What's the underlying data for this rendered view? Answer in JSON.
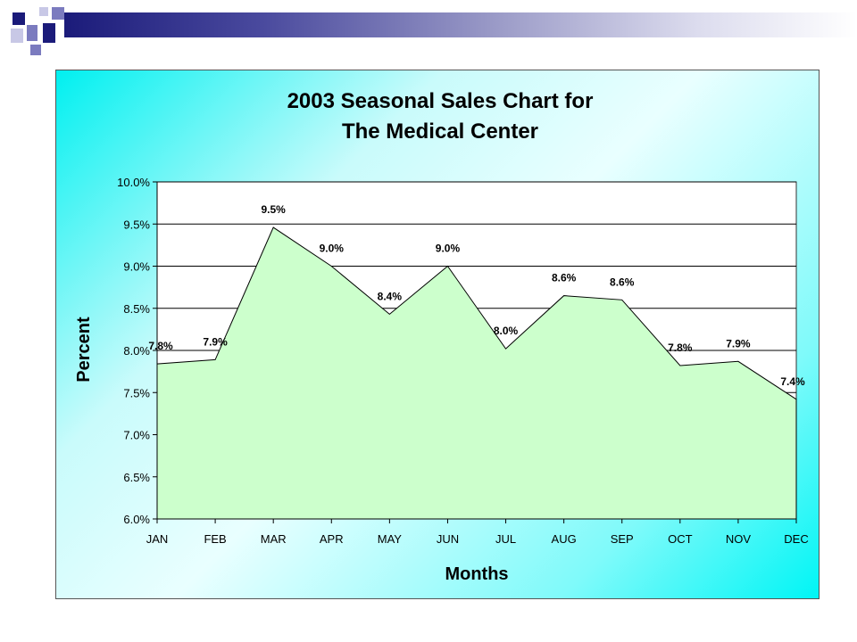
{
  "slide": {
    "decor_colors": {
      "dark": "#1b1b7a",
      "mid": "#7b7bbf",
      "light": "#c8c8e6"
    },
    "frame_colors": {
      "cyan": "#00f5f5",
      "plot_bg": "#ffffff",
      "area_fill": "#ccffcc"
    }
  },
  "chart_data": {
    "type": "area",
    "title": [
      "2003 Seasonal Sales Chart for",
      "The Medical Center"
    ],
    "xlabel": "Months",
    "ylabel": "Percent",
    "categories": [
      "JAN",
      "FEB",
      "MAR",
      "APR",
      "MAY",
      "JUN",
      "JUL",
      "AUG",
      "SEP",
      "OCT",
      "NOV",
      "DEC"
    ],
    "series": [
      {
        "values": [
          7.84,
          7.89,
          9.46,
          9.0,
          8.43,
          9.0,
          8.02,
          8.65,
          8.6,
          7.82,
          7.87,
          7.42
        ],
        "labels": [
          "7.8%",
          "7.9%",
          "9.5%",
          "9.0%",
          "8.4%",
          "9.0%",
          "8.0%",
          "8.6%",
          "8.6%",
          "7.8%",
          "7.9%",
          "7.4%"
        ]
      }
    ],
    "ylim": [
      6.0,
      10.0
    ],
    "yticks": [
      "6.0%",
      "6.5%",
      "7.0%",
      "7.5%",
      "8.0%",
      "8.5%",
      "9.0%",
      "9.5%",
      "10.0%"
    ],
    "grid": true,
    "legend": "none"
  }
}
